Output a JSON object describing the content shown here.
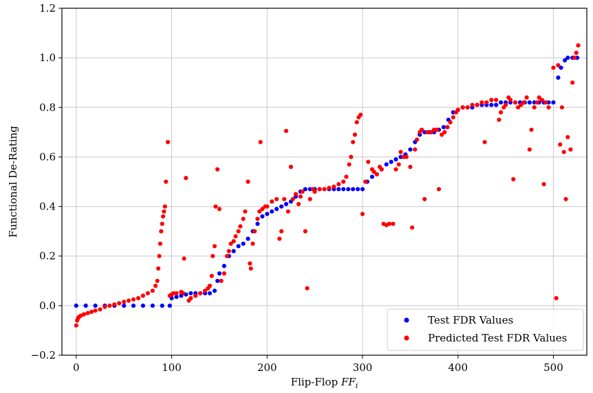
{
  "chart_data": {
    "type": "scatter",
    "title": "",
    "xlabel_prefix": "Flip-Flop ",
    "xlabel_italic": "FF",
    "xlabel_sub": "i",
    "ylabel": "Functional De-Rating",
    "xlim": [
      -15,
      535
    ],
    "ylim": [
      -0.2,
      1.2
    ],
    "xticks": [
      0,
      100,
      200,
      300,
      400,
      500
    ],
    "yticks": [
      -0.2,
      0.0,
      0.2,
      0.4,
      0.6,
      0.8,
      1.0,
      1.2
    ],
    "xtick_labels": [
      "0",
      "100",
      "200",
      "300",
      "400",
      "500"
    ],
    "ytick_labels": [
      "−0.2",
      "0.0",
      "0.2",
      "0.4",
      "0.6",
      "0.8",
      "1.0",
      "1.2"
    ],
    "grid": true,
    "legend_position": "lower-right",
    "series": [
      {
        "name": "Test FDR Values",
        "color": "#0000ff",
        "points": [
          [
            0,
            0.0
          ],
          [
            10,
            0.0
          ],
          [
            20,
            0.0
          ],
          [
            30,
            0.0
          ],
          [
            40,
            0.0
          ],
          [
            50,
            0.0
          ],
          [
            60,
            0.0
          ],
          [
            70,
            0.0
          ],
          [
            80,
            0.0
          ],
          [
            90,
            0.0
          ],
          [
            98,
            0.0
          ],
          [
            100,
            0.03
          ],
          [
            105,
            0.035
          ],
          [
            110,
            0.04
          ],
          [
            115,
            0.045
          ],
          [
            120,
            0.05
          ],
          [
            125,
            0.05
          ],
          [
            130,
            0.05
          ],
          [
            135,
            0.05
          ],
          [
            140,
            0.05
          ],
          [
            145,
            0.06
          ],
          [
            148,
            0.1
          ],
          [
            150,
            0.13
          ],
          [
            155,
            0.16
          ],
          [
            160,
            0.2
          ],
          [
            165,
            0.22
          ],
          [
            170,
            0.24
          ],
          [
            175,
            0.25
          ],
          [
            180,
            0.27
          ],
          [
            185,
            0.3
          ],
          [
            190,
            0.33
          ],
          [
            195,
            0.36
          ],
          [
            200,
            0.37
          ],
          [
            205,
            0.38
          ],
          [
            210,
            0.39
          ],
          [
            215,
            0.4
          ],
          [
            220,
            0.41
          ],
          [
            225,
            0.42
          ],
          [
            230,
            0.44
          ],
          [
            235,
            0.46
          ],
          [
            240,
            0.47
          ],
          [
            245,
            0.47
          ],
          [
            250,
            0.47
          ],
          [
            255,
            0.47
          ],
          [
            260,
            0.47
          ],
          [
            265,
            0.47
          ],
          [
            270,
            0.47
          ],
          [
            275,
            0.47
          ],
          [
            280,
            0.47
          ],
          [
            285,
            0.47
          ],
          [
            290,
            0.47
          ],
          [
            295,
            0.47
          ],
          [
            300,
            0.47
          ],
          [
            305,
            0.5
          ],
          [
            310,
            0.52
          ],
          [
            315,
            0.53
          ],
          [
            320,
            0.55
          ],
          [
            325,
            0.57
          ],
          [
            330,
            0.58
          ],
          [
            335,
            0.59
          ],
          [
            340,
            0.6
          ],
          [
            345,
            0.61
          ],
          [
            350,
            0.63
          ],
          [
            355,
            0.66
          ],
          [
            360,
            0.69
          ],
          [
            365,
            0.7
          ],
          [
            370,
            0.7
          ],
          [
            375,
            0.7
          ],
          [
            380,
            0.71
          ],
          [
            385,
            0.72
          ],
          [
            390,
            0.75
          ],
          [
            395,
            0.78
          ],
          [
            400,
            0.79
          ],
          [
            405,
            0.8
          ],
          [
            410,
            0.8
          ],
          [
            415,
            0.8
          ],
          [
            420,
            0.81
          ],
          [
            425,
            0.81
          ],
          [
            430,
            0.81
          ],
          [
            435,
            0.81
          ],
          [
            440,
            0.81
          ],
          [
            445,
            0.82
          ],
          [
            450,
            0.82
          ],
          [
            455,
            0.82
          ],
          [
            460,
            0.82
          ],
          [
            465,
            0.82
          ],
          [
            470,
            0.82
          ],
          [
            475,
            0.82
          ],
          [
            480,
            0.82
          ],
          [
            485,
            0.82
          ],
          [
            490,
            0.82
          ],
          [
            495,
            0.82
          ],
          [
            500,
            0.82
          ],
          [
            505,
            0.92
          ],
          [
            508,
            0.96
          ],
          [
            512,
            0.99
          ],
          [
            515,
            1.0
          ],
          [
            520,
            1.0
          ],
          [
            525,
            1.0
          ]
        ]
      },
      {
        "name": "Predicted Test FDR Values",
        "color": "#ff0000",
        "points": [
          [
            0,
            -0.08
          ],
          [
            1,
            -0.06
          ],
          [
            2,
            -0.05
          ],
          [
            3,
            -0.045
          ],
          [
            5,
            -0.04
          ],
          [
            8,
            -0.035
          ],
          [
            12,
            -0.03
          ],
          [
            16,
            -0.025
          ],
          [
            20,
            -0.02
          ],
          [
            25,
            -0.015
          ],
          [
            30,
            -0.005
          ],
          [
            35,
            0.0
          ],
          [
            40,
            0.005
          ],
          [
            45,
            0.01
          ],
          [
            50,
            0.015
          ],
          [
            55,
            0.02
          ],
          [
            60,
            0.025
          ],
          [
            65,
            0.03
          ],
          [
            70,
            0.04
          ],
          [
            75,
            0.05
          ],
          [
            80,
            0.06
          ],
          [
            83,
            0.08
          ],
          [
            85,
            0.1
          ],
          [
            86,
            0.15
          ],
          [
            87,
            0.2
          ],
          [
            88,
            0.25
          ],
          [
            89,
            0.3
          ],
          [
            90,
            0.33
          ],
          [
            91,
            0.36
          ],
          [
            92,
            0.38
          ],
          [
            93,
            0.4
          ],
          [
            94,
            0.5
          ],
          [
            96,
            0.66
          ],
          [
            98,
            0.04
          ],
          [
            100,
            0.045
          ],
          [
            102,
            0.05
          ],
          [
            105,
            0.05
          ],
          [
            110,
            0.055
          ],
          [
            112,
            0.05
          ],
          [
            113,
            0.19
          ],
          [
            115,
            0.515
          ],
          [
            118,
            0.02
          ],
          [
            120,
            0.03
          ],
          [
            125,
            0.04
          ],
          [
            130,
            0.05
          ],
          [
            135,
            0.06
          ],
          [
            138,
            0.07
          ],
          [
            140,
            0.08
          ],
          [
            142,
            0.12
          ],
          [
            143,
            0.2
          ],
          [
            145,
            0.24
          ],
          [
            146,
            0.4
          ],
          [
            148,
            0.55
          ],
          [
            150,
            0.39
          ],
          [
            152,
            0.1
          ],
          [
            155,
            0.13
          ],
          [
            158,
            0.2
          ],
          [
            160,
            0.22
          ],
          [
            162,
            0.25
          ],
          [
            165,
            0.26
          ],
          [
            167,
            0.28
          ],
          [
            170,
            0.3
          ],
          [
            172,
            0.32
          ],
          [
            175,
            0.35
          ],
          [
            177,
            0.38
          ],
          [
            180,
            0.5
          ],
          [
            182,
            0.17
          ],
          [
            183,
            0.15
          ],
          [
            185,
            0.25
          ],
          [
            187,
            0.3
          ],
          [
            190,
            0.35
          ],
          [
            192,
            0.38
          ],
          [
            193,
            0.66
          ],
          [
            195,
            0.39
          ],
          [
            198,
            0.4
          ],
          [
            200,
            0.4
          ],
          [
            205,
            0.42
          ],
          [
            210,
            0.43
          ],
          [
            213,
            0.27
          ],
          [
            215,
            0.3
          ],
          [
            218,
            0.43
          ],
          [
            220,
            0.705
          ],
          [
            222,
            0.38
          ],
          [
            225,
            0.56
          ],
          [
            227,
            0.43
          ],
          [
            230,
            0.45
          ],
          [
            233,
            0.41
          ],
          [
            235,
            0.44
          ],
          [
            237,
            0.46
          ],
          [
            240,
            0.3
          ],
          [
            242,
            0.07
          ],
          [
            245,
            0.43
          ],
          [
            248,
            0.47
          ],
          [
            250,
            0.46
          ],
          [
            255,
            0.47
          ],
          [
            260,
            0.47
          ],
          [
            265,
            0.475
          ],
          [
            270,
            0.48
          ],
          [
            275,
            0.49
          ],
          [
            280,
            0.5
          ],
          [
            283,
            0.52
          ],
          [
            286,
            0.57
          ],
          [
            288,
            0.6
          ],
          [
            290,
            0.66
          ],
          [
            292,
            0.69
          ],
          [
            294,
            0.74
          ],
          [
            296,
            0.76
          ],
          [
            298,
            0.77
          ],
          [
            300,
            0.37
          ],
          [
            303,
            0.5
          ],
          [
            306,
            0.58
          ],
          [
            310,
            0.55
          ],
          [
            312,
            0.54
          ],
          [
            315,
            0.53
          ],
          [
            318,
            0.56
          ],
          [
            320,
            0.55
          ],
          [
            322,
            0.33
          ],
          [
            325,
            0.325
          ],
          [
            328,
            0.33
          ],
          [
            332,
            0.33
          ],
          [
            335,
            0.55
          ],
          [
            338,
            0.57
          ],
          [
            340,
            0.62
          ],
          [
            343,
            0.6
          ],
          [
            346,
            0.6
          ],
          [
            350,
            0.56
          ],
          [
            352,
            0.315
          ],
          [
            355,
            0.63
          ],
          [
            357,
            0.67
          ],
          [
            360,
            0.7
          ],
          [
            362,
            0.71
          ],
          [
            365,
            0.43
          ],
          [
            368,
            0.7
          ],
          [
            372,
            0.7
          ],
          [
            375,
            0.71
          ],
          [
            378,
            0.71
          ],
          [
            380,
            0.47
          ],
          [
            383,
            0.69
          ],
          [
            386,
            0.7
          ],
          [
            389,
            0.72
          ],
          [
            392,
            0.74
          ],
          [
            395,
            0.76
          ],
          [
            398,
            0.78
          ],
          [
            400,
            0.79
          ],
          [
            405,
            0.8
          ],
          [
            410,
            0.8
          ],
          [
            415,
            0.81
          ],
          [
            420,
            0.81
          ],
          [
            425,
            0.82
          ],
          [
            428,
            0.66
          ],
          [
            430,
            0.82
          ],
          [
            435,
            0.83
          ],
          [
            440,
            0.83
          ],
          [
            443,
            0.75
          ],
          [
            445,
            0.78
          ],
          [
            448,
            0.8
          ],
          [
            450,
            0.81
          ],
          [
            453,
            0.84
          ],
          [
            455,
            0.83
          ],
          [
            458,
            0.51
          ],
          [
            460,
            0.82
          ],
          [
            463,
            0.8
          ],
          [
            466,
            0.81
          ],
          [
            469,
            0.82
          ],
          [
            472,
            0.84
          ],
          [
            475,
            0.63
          ],
          [
            477,
            0.71
          ],
          [
            480,
            0.8
          ],
          [
            483,
            0.82
          ],
          [
            485,
            0.84
          ],
          [
            488,
            0.83
          ],
          [
            490,
            0.49
          ],
          [
            492,
            0.82
          ],
          [
            495,
            0.8
          ],
          [
            500,
            0.96
          ],
          [
            503,
            0.03
          ],
          [
            505,
            0.97
          ],
          [
            507,
            0.65
          ],
          [
            509,
            0.8
          ],
          [
            511,
            0.62
          ],
          [
            513,
            0.43
          ],
          [
            515,
            0.68
          ],
          [
            518,
            0.63
          ],
          [
            520,
            0.9
          ],
          [
            522,
            1.0
          ],
          [
            524,
            1.02
          ],
          [
            526,
            1.05
          ]
        ]
      }
    ]
  }
}
